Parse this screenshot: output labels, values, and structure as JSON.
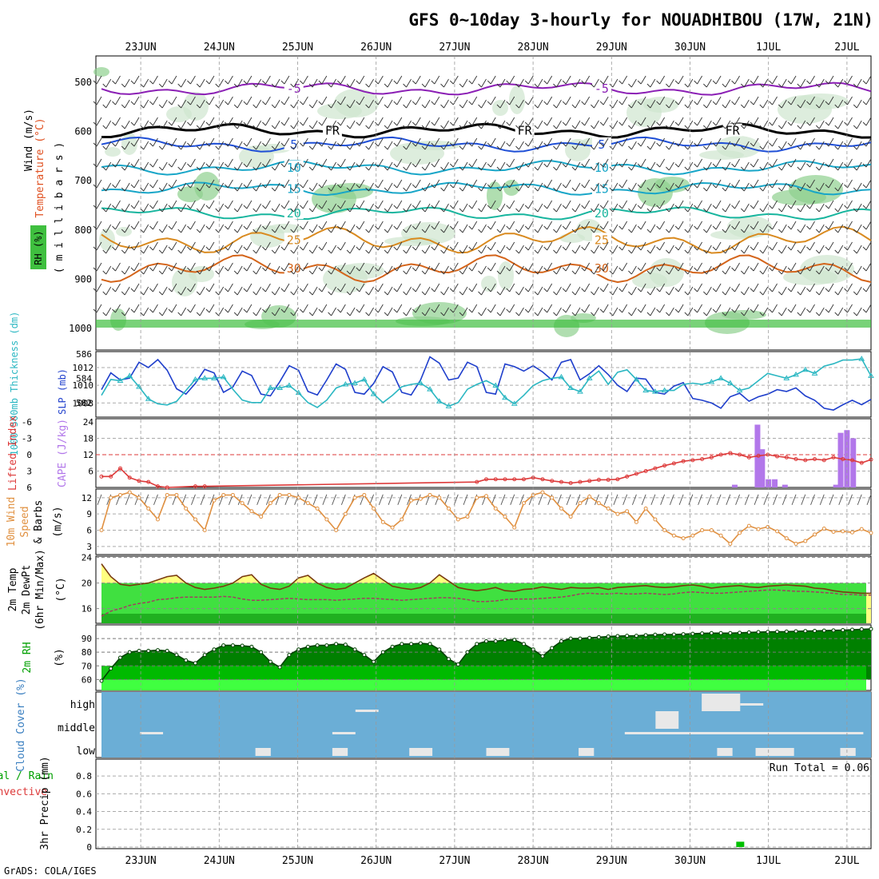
{
  "page": {
    "title": "GFS 0~10day 3-hourly for NOUADHIBOU (17W, 21N)",
    "footer": "GrADS: COLA/IGES",
    "date_labels": [
      "23JUN",
      "24JUN",
      "25JUN",
      "26JUN",
      "27JUN",
      "28JUN",
      "29JUN",
      "30JUN",
      "1JUL",
      "2JUL"
    ]
  },
  "colors": {
    "rh_light": "#cfe6cf",
    "rh_mid": "#8fd08f",
    "rh_dark": "#3fbf3f",
    "temp_purple": "#8b1fb5",
    "temp_blue": "#1f4fd6",
    "temp_cyan": "#18a6c8",
    "temp_teal": "#17b59e",
    "temp_orange": "#d98a1f",
    "temp_dark_orange": "#d4641a",
    "slp": "#1f3fcc",
    "thickness": "#2bb7c2",
    "cape": "#b277ea",
    "li": "#dd3a3a",
    "wind10m": "#e09040",
    "temp_fill": "#ffff80",
    "dew_fill": "#40e040",
    "dew_dark": "#20b020",
    "rh_green": "#00c000",
    "rh_dark_green": "#008000",
    "rh_light_green": "#40ff40",
    "cloud_bg": "#6baed6",
    "cloud_fill": "#e8e8e8",
    "precip": "#00c000"
  },
  "chart_data": [
    {
      "panel": "upper-air",
      "type": "contour",
      "ylabel_left": [
        "RH (%)",
        "Temperature (°C)",
        "Wind (m/s)"
      ],
      "ylabel_right": "( m i l l i b a r s )",
      "ylim": [
        1000,
        450
      ],
      "y_ticks": [
        500,
        600,
        700,
        800,
        900,
        1000
      ],
      "isotherms": [
        {
          "label": "-5",
          "pressure": 515,
          "color": "temp_purple"
        },
        {
          "label": "FR",
          "pressure": 600,
          "color": "#000000"
        },
        {
          "label": "5",
          "pressure": 628,
          "color": "temp_blue"
        },
        {
          "label": "10",
          "pressure": 675,
          "color": "temp_cyan"
        },
        {
          "label": "15",
          "pressure": 718,
          "color": "temp_cyan"
        },
        {
          "label": "20",
          "pressure": 768,
          "color": "temp_teal"
        },
        {
          "label": "25",
          "pressure": 822,
          "color": "temp_orange"
        },
        {
          "label": "30",
          "pressure": 880,
          "color": "temp_dark_orange"
        }
      ],
      "contour_labels": [
        "5",
        "-5",
        "FR",
        "5",
        "10",
        "15",
        "20",
        "25",
        "30",
        "30",
        "0",
        "0",
        "0"
      ]
    },
    {
      "panel": "thickness-slp",
      "type": "line",
      "ylabel_left": "1000-500mb Thickness (dm)",
      "ylabel_right": "SLP (mb)",
      "y_left_ticks": [
        582,
        584,
        586
      ],
      "y_right_ticks": [
        1008,
        1010,
        1012
      ],
      "series": [
        {
          "name": "SLP (mb)",
          "axis": "right",
          "values": [
            1009.5,
            1011.4,
            1010.6,
            1010.8,
            1012.6,
            1012.0,
            1012.9,
            1011.7,
            1009.6,
            1009.0,
            1010.2,
            1011.8,
            1011.4,
            1009.2,
            1009.8,
            1011.6,
            1011.1,
            1009.0,
            1008.8,
            1010.4,
            1012.2,
            1011.7,
            1009.3,
            1008.9,
            1010.6,
            1012.4,
            1011.8,
            1009.2,
            1009.0,
            1010.2,
            1012.1,
            1011.5,
            1009.2,
            1008.9,
            1010.6,
            1013.2,
            1012.5,
            1010.6,
            1010.8,
            1012.6,
            1012.1,
            1009.2,
            1009.0,
            1012.4,
            1012.1,
            1011.6,
            1012.2,
            1011.5,
            1010.6,
            1012.6,
            1012.9,
            1010.6,
            1011.3,
            1012.2,
            1011.2,
            1010.0,
            1009.3,
            1010.8,
            1010.7,
            1009.2,
            1009.0,
            1009.9,
            1010.3,
            1008.5,
            1008.3,
            1008.0,
            1007.4,
            1008.7,
            1009.1,
            1008.2,
            1008.7,
            1009.0,
            1009.5,
            1009.3,
            1009.7,
            1008.8,
            1008.3,
            1007.4,
            1007.2,
            1007.8,
            1008.3,
            1007.8,
            1008.4
          ]
        },
        {
          "name": "1000-500mb Thickness (dm)",
          "axis": "left",
          "values": [
            582.6,
            583.9,
            583.8,
            584.2,
            583.3,
            582.3,
            581.9,
            581.8,
            582.1,
            583.0,
            583.9,
            584.0,
            584.0,
            584.1,
            583.1,
            582.2,
            582.0,
            582.0,
            583.2,
            583.2,
            583.4,
            582.8,
            582.0,
            581.6,
            582.2,
            583.2,
            583.5,
            583.6,
            583.9,
            582.7,
            582.0,
            582.6,
            583.3,
            583.5,
            583.6,
            583.1,
            582.1,
            581.7,
            582.0,
            583.1,
            583.5,
            583.8,
            583.4,
            582.4,
            581.9,
            582.6,
            583.4,
            583.8,
            584.0,
            584.1,
            583.2,
            582.9,
            584.0,
            584.6,
            583.5,
            584.5,
            584.7,
            583.9,
            583.0,
            582.9,
            583.0,
            583.0,
            583.5,
            583.6,
            583.5,
            583.7,
            584.0,
            583.6,
            583.0,
            583.2,
            583.8,
            584.4,
            584.2,
            584.0,
            584.3,
            584.7,
            584.4,
            585.0,
            585.2,
            585.5,
            585.5,
            585.6,
            584.2
          ]
        }
      ]
    },
    {
      "panel": "cape-li",
      "type": "bar",
      "ylabel_left": "Lifted Index",
      "ylabel_right": "CAPE (J/kg)",
      "y_left_ticks": [
        -6,
        -3,
        0,
        3,
        6
      ],
      "y_right_ticks": [
        6,
        12,
        18,
        24
      ],
      "series": [
        {
          "name": "CAPE (J/kg)",
          "type": "bar",
          "x": [
            8.57,
            8.86,
            8.92,
            9.0,
            9.08,
            9.21,
            9.86,
            9.92,
            10.0,
            10.08
          ],
          "values": [
            1,
            23,
            14,
            3,
            3,
            1,
            1,
            20,
            21,
            18
          ]
        },
        {
          "name": "Lifted Index",
          "type": "line",
          "values": [
            4.0,
            4.0,
            2.5,
            4.2,
            4.8,
            5.0,
            5.8,
            6.0,
            null,
            null,
            5.8,
            5.8,
            null,
            null,
            null,
            null,
            null,
            null,
            null,
            null,
            null,
            null,
            null,
            null,
            null,
            null,
            null,
            null,
            null,
            null,
            null,
            null,
            null,
            null,
            null,
            null,
            null,
            null,
            null,
            null,
            5.0,
            4.5,
            4.5,
            4.5,
            4.5,
            4.5,
            4.2,
            4.5,
            4.8,
            5.0,
            5.2,
            5.0,
            4.8,
            4.6,
            4.6,
            4.5,
            4.0,
            3.5,
            3.0,
            2.5,
            2.0,
            1.6,
            1.2,
            1.0,
            0.8,
            0.5,
            0.0,
            -0.3,
            0.0,
            0.5,
            0.2,
            0.0,
            0.3,
            0.5,
            0.8,
            1.0,
            0.8,
            1.0,
            0.5,
            0.8,
            1.0,
            1.5,
            0.9
          ]
        }
      ]
    },
    {
      "panel": "wind-10m",
      "type": "line",
      "ylabel_left": [
        "10m Wind",
        "Speed",
        "& Barbs"
      ],
      "ylabel_right": "(m/s)",
      "y_ticks": [
        3,
        6,
        9,
        12
      ],
      "series": [
        {
          "name": "10m Wind Speed",
          "values": [
            6,
            12,
            12.5,
            13,
            12,
            10,
            8,
            12.5,
            12.5,
            10,
            8,
            6,
            11.5,
            12.5,
            12.5,
            11,
            9.5,
            8.5,
            11,
            12.5,
            12.5,
            12,
            11,
            10,
            8,
            6,
            9,
            12,
            12.5,
            10,
            7.5,
            6.5,
            8,
            11.5,
            11.8,
            12.5,
            12,
            10,
            8,
            8.5,
            12,
            12.3,
            10,
            8.5,
            6.5,
            11,
            12.5,
            13,
            12,
            10,
            8.5,
            11,
            12.2,
            11,
            10,
            9,
            9.5,
            7.5,
            10,
            8,
            6,
            5,
            4.5,
            5,
            6,
            6,
            5,
            3.5,
            5.5,
            6.8,
            6.2,
            6.6,
            5.8,
            4.5,
            3.5,
            4,
            5.2,
            6.3,
            5.7,
            5.8,
            5.6,
            6.2,
            5.5
          ]
        }
      ]
    },
    {
      "panel": "temp-2m",
      "type": "area",
      "ylabel_left": [
        "2m Temp",
        "2m DewPt",
        "(6hr Min/Max)"
      ],
      "ylabel_right": "(°C)",
      "y_ticks": [
        16,
        20,
        24
      ],
      "series": [
        {
          "name": "2m Temp",
          "values": [
            23,
            21,
            19.8,
            19.6,
            19.8,
            20,
            20.5,
            21,
            21.2,
            20,
            19.3,
            19,
            19.2,
            19.5,
            20,
            21,
            21.3,
            19.8,
            19.2,
            19,
            19.5,
            20.8,
            21.2,
            20,
            19.3,
            19,
            19.2,
            20,
            20.8,
            21.5,
            20.5,
            19.5,
            19.2,
            19,
            19.3,
            20,
            21.3,
            20.3,
            19.3,
            19,
            18.8,
            19,
            19.3,
            18.8,
            18.7,
            19,
            19.1,
            19.4,
            19.2,
            19,
            19.3,
            19.2,
            19.2,
            19.3,
            19,
            19.3,
            19.4,
            19.5,
            19.6,
            19.4,
            19.3,
            19.4,
            19.6,
            19.7,
            19.5,
            19.2,
            19.4,
            19.5,
            19.6,
            19.4,
            19.3,
            19.5,
            19.6,
            19.7,
            19.6,
            19.5,
            19.2,
            19.1,
            18.8,
            18.6,
            18.5,
            18.4,
            18.4
          ]
        },
        {
          "name": "2m DewPt",
          "values": [
            14.8,
            15.6,
            16,
            16.5,
            16.8,
            17,
            17.4,
            17.5,
            17.7,
            17.8,
            17.8,
            17.8,
            17.8,
            17.9,
            17.8,
            17.5,
            17.3,
            17.3,
            17.4,
            17.5,
            17.6,
            17.5,
            17.4,
            17.4,
            17.4,
            17.3,
            17.4,
            17.5,
            17.6,
            17.6,
            17.5,
            17.4,
            17.3,
            17.4,
            17.5,
            17.6,
            17.7,
            17.7,
            17.6,
            17.4,
            17.1,
            17.1,
            17.2,
            17.4,
            17.5,
            17.5,
            17.5,
            17.6,
            17.7,
            17.8,
            18,
            18.3,
            18.4,
            18.3,
            18.3,
            18.4,
            18.3,
            18.3,
            18.4,
            18.3,
            18.2,
            18.3,
            18.5,
            18.6,
            18.5,
            18.4,
            18.4,
            18.5,
            18.6,
            18.7,
            18.8,
            18.9,
            18.9,
            18.8,
            18.7,
            18.7,
            18.6,
            18.5,
            18.4,
            18.2,
            18.2,
            18.1,
            18.1
          ]
        }
      ]
    },
    {
      "panel": "rh-2m",
      "type": "area",
      "ylabel_left": "2m RH",
      "ylabel_right": "(%)",
      "y_ticks": [
        60,
        70,
        80,
        90
      ],
      "series": [
        {
          "name": "2m RH",
          "values": [
            59,
            68,
            76,
            80,
            81,
            81,
            81.5,
            81,
            78,
            74,
            72,
            78,
            82,
            85,
            85,
            84.8,
            84,
            80,
            73,
            69,
            78,
            82,
            84,
            85,
            85,
            86,
            85.5,
            82,
            78,
            73,
            80,
            84,
            86,
            86,
            86.5,
            86,
            82,
            75,
            71,
            80,
            86,
            88,
            88,
            89,
            89,
            86,
            82,
            77,
            83,
            88,
            90,
            90,
            90.5,
            91,
            91.5,
            91.8,
            92,
            92,
            92.5,
            92.8,
            93,
            93,
            93.2,
            93.5,
            93.8,
            94,
            94,
            94,
            94.2,
            94.5,
            94.7,
            94.9,
            95,
            95.1,
            95.3,
            95.5,
            95.6,
            95.8,
            96,
            96.2,
            96.5,
            96.8,
            97
          ]
        }
      ]
    },
    {
      "panel": "cloud-cover",
      "type": "heatmap",
      "ylabel": "Cloud Cover (%)",
      "rows": [
        "high",
        "middle",
        "low"
      ]
    },
    {
      "panel": "precip",
      "type": "bar",
      "ylabel_left": [
        "Total / Rain",
        "Convective"
      ],
      "ylabel_right": "3hr Precip (mm)",
      "ylim": [
        0,
        0.9
      ],
      "y_ticks": [
        "0",
        "0.2",
        "0.4",
        "0.6",
        "0.8"
      ],
      "run_total": "Run Total = 0.06",
      "series": [
        {
          "name": "Total / Rain",
          "x": [
            8.64
          ],
          "values": [
            0.06
          ]
        }
      ]
    }
  ]
}
